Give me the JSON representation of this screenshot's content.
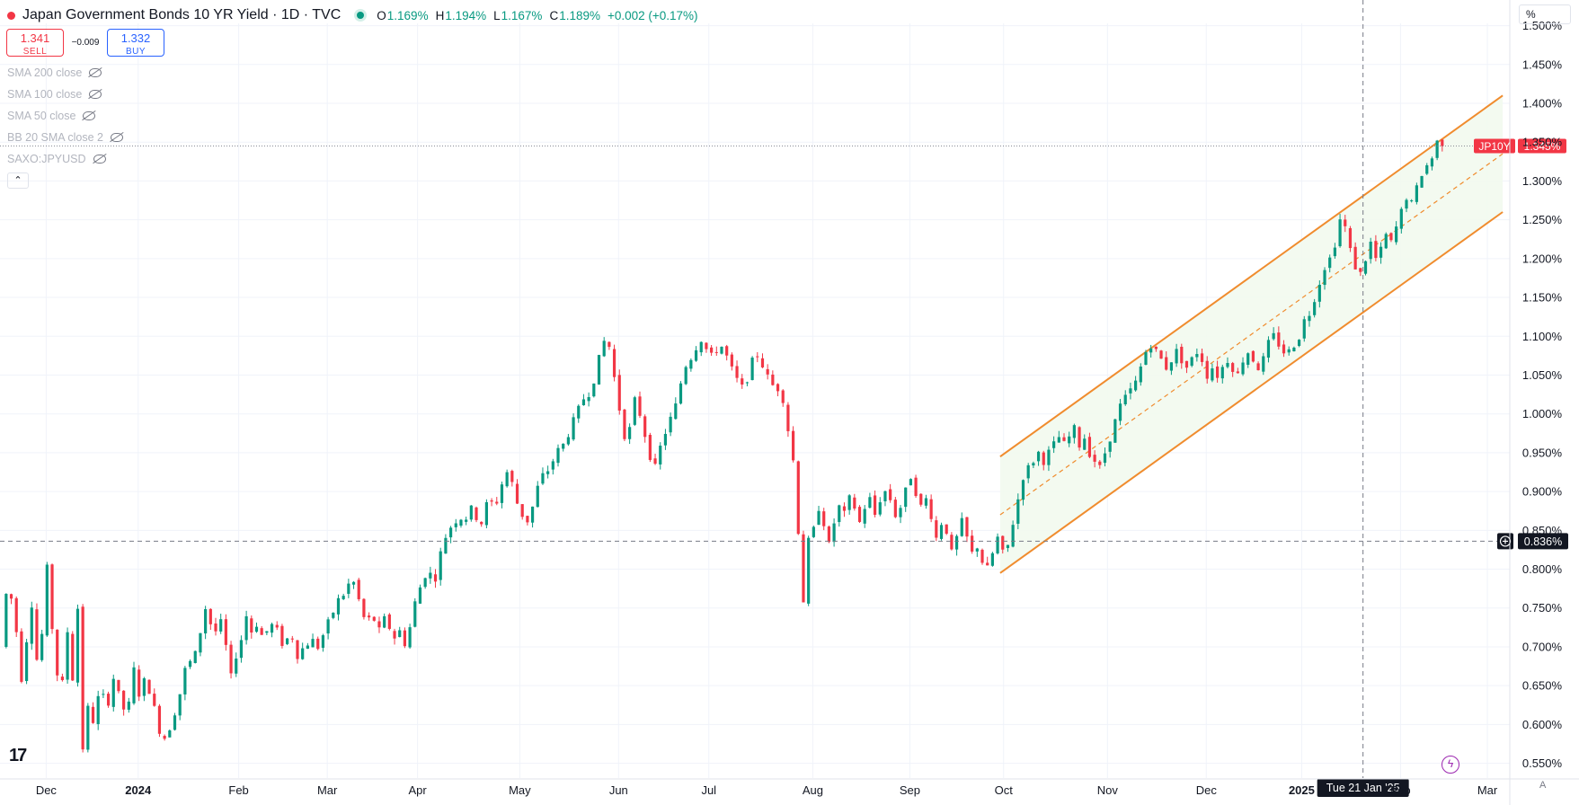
{
  "header": {
    "title": "Japan Government Bonds 10 YR Yield · 1D · TVC",
    "ohlc": [
      {
        "key": "O",
        "value": "1.169%"
      },
      {
        "key": "H",
        "value": "1.194%"
      },
      {
        "key": "L",
        "value": "1.167%"
      },
      {
        "key": "C",
        "value": "1.189%"
      }
    ],
    "change": "+0.002 (+0.17%)"
  },
  "trade": {
    "sell_price": "1.341",
    "sell_label": "SELL",
    "spread": "−0.009",
    "buy_price": "1.332",
    "buy_label": "BUY"
  },
  "indicators": [
    {
      "label": "SMA 200 close"
    },
    {
      "label": "SMA 100 close"
    },
    {
      "label": "SMA 50 close"
    },
    {
      "label": "BB 20 SMA close 2"
    },
    {
      "label": "SAXO:JPYUSD"
    }
  ],
  "axis_unit": "%",
  "colors": {
    "up": "#089981",
    "down": "#f23645",
    "channel": "#f08c2e",
    "channel_fill": "#f2f9ee",
    "text": "#131722",
    "grid": "#f0f3fa"
  },
  "icons": [
    "tradingview-logo-icon",
    "eye-off-icon",
    "chevron-up-icon",
    "lightning-icon",
    "plus-circle-icon"
  ],
  "chart_data": {
    "type": "candlestick",
    "y_axis": {
      "ticks": [
        0.55,
        0.6,
        0.65,
        0.7,
        0.75,
        0.8,
        0.85,
        0.9,
        0.95,
        1.0,
        1.05,
        1.1,
        1.15,
        1.2,
        1.25,
        1.3,
        1.35,
        1.4,
        1.45,
        1.5
      ],
      "tick_labels": [
        "0.550%",
        "0.600%",
        "0.650%",
        "0.700%",
        "0.750%",
        "0.800%",
        "0.850%",
        "0.900%",
        "0.950%",
        "1.000%",
        "1.050%",
        "1.100%",
        "1.150%",
        "1.200%",
        "1.250%",
        "1.300%",
        "1.350%",
        "1.400%",
        "1.450%",
        "1.500%"
      ],
      "range": [
        0.531,
        1.503
      ]
    },
    "x_axis": {
      "labels": [
        {
          "t": 25,
          "text": "Dec"
        },
        {
          "t": 79,
          "text": "2024"
        },
        {
          "t": 138,
          "text": "Feb"
        },
        {
          "t": 190,
          "text": "Mar"
        },
        {
          "t": 243,
          "text": "Apr"
        },
        {
          "t": 303,
          "text": "May"
        },
        {
          "t": 361,
          "text": "Jun"
        },
        {
          "t": 414,
          "text": "Jul"
        },
        {
          "t": 475,
          "text": "Aug"
        },
        {
          "t": 532,
          "text": "Sep"
        },
        {
          "t": 587,
          "text": "Oct"
        },
        {
          "t": 648,
          "text": "Nov"
        },
        {
          "t": 706,
          "text": "Dec"
        },
        {
          "t": 762,
          "text": "2025"
        },
        {
          "t": 820,
          "text": "Feb"
        },
        {
          "t": 871,
          "text": "Mar"
        }
      ],
      "range": [
        0,
        881
      ]
    },
    "price_line": {
      "label": "JP10Y",
      "value_label": "1.345%",
      "value": 1.345
    },
    "crosshair": {
      "price_label": "0.836%",
      "value": 0.836,
      "time_label": "Tue 21 Jan '25",
      "t": 798
    },
    "channel": {
      "start": {
        "t": 585,
        "low": 0.795
      },
      "end": {
        "t": 880,
        "low": 1.26
      },
      "width": 0.15
    },
    "path": [
      [
        0,
        0.7
      ],
      [
        4,
        0.79
      ],
      [
        9,
        0.72
      ],
      [
        13,
        0.64
      ],
      [
        17,
        0.78
      ],
      [
        22,
        0.66
      ],
      [
        27,
        0.8
      ],
      [
        31,
        0.7
      ],
      [
        35,
        0.63
      ],
      [
        39,
        0.72
      ],
      [
        42,
        0.66
      ],
      [
        45,
        0.75
      ],
      [
        48,
        0.57
      ],
      [
        51,
        0.62
      ],
      [
        55,
        0.6
      ],
      [
        58,
        0.65
      ],
      [
        62,
        0.62
      ],
      [
        66,
        0.66
      ],
      [
        70,
        0.63
      ],
      [
        74,
        0.61
      ],
      [
        78,
        0.67
      ],
      [
        81,
        0.64
      ],
      [
        85,
        0.66
      ],
      [
        89,
        0.63
      ],
      [
        92,
        0.6
      ],
      [
        95,
        0.58
      ],
      [
        98,
        0.59
      ],
      [
        101,
        0.61
      ],
      [
        104,
        0.63
      ],
      [
        108,
        0.67
      ],
      [
        111,
        0.68
      ],
      [
        114,
        0.69
      ],
      [
        117,
        0.72
      ],
      [
        120,
        0.75
      ],
      [
        123,
        0.73
      ],
      [
        126,
        0.72
      ],
      [
        129,
        0.73
      ],
      [
        132,
        0.7
      ],
      [
        135,
        0.66
      ],
      [
        138,
        0.69
      ],
      [
        141,
        0.71
      ],
      [
        144,
        0.74
      ],
      [
        147,
        0.72
      ],
      [
        150,
        0.73
      ],
      [
        154,
        0.71
      ],
      [
        158,
        0.73
      ],
      [
        162,
        0.72
      ],
      [
        166,
        0.7
      ],
      [
        170,
        0.72
      ],
      [
        174,
        0.69
      ],
      [
        178,
        0.7
      ],
      [
        182,
        0.71
      ],
      [
        186,
        0.7
      ],
      [
        190,
        0.72
      ],
      [
        194,
        0.74
      ],
      [
        198,
        0.76
      ],
      [
        202,
        0.77
      ],
      [
        206,
        0.79
      ],
      [
        210,
        0.76
      ],
      [
        214,
        0.73
      ],
      [
        218,
        0.74
      ],
      [
        222,
        0.72
      ],
      [
        226,
        0.74
      ],
      [
        230,
        0.71
      ],
      [
        234,
        0.72
      ],
      [
        238,
        0.7
      ],
      [
        242,
        0.75
      ],
      [
        245,
        0.77
      ],
      [
        248,
        0.79
      ],
      [
        251,
        0.8
      ],
      [
        254,
        0.78
      ],
      [
        258,
        0.82
      ],
      [
        262,
        0.85
      ],
      [
        266,
        0.86
      ],
      [
        269,
        0.87
      ],
      [
        272,
        0.86
      ],
      [
        275,
        0.88
      ],
      [
        278,
        0.87
      ],
      [
        282,
        0.86
      ],
      [
        286,
        0.89
      ],
      [
        290,
        0.88
      ],
      [
        294,
        0.91
      ],
      [
        298,
        0.93
      ],
      [
        302,
        0.89
      ],
      [
        306,
        0.87
      ],
      [
        310,
        0.86
      ],
      [
        314,
        0.9
      ],
      [
        318,
        0.92
      ],
      [
        322,
        0.93
      ],
      [
        326,
        0.95
      ],
      [
        330,
        0.96
      ],
      [
        334,
        0.98
      ],
      [
        338,
        1.0
      ],
      [
        342,
        1.02
      ],
      [
        346,
        1.03
      ],
      [
        350,
        1.06
      ],
      [
        353,
        1.09
      ],
      [
        356,
        1.1
      ],
      [
        359,
        1.06
      ],
      [
        362,
        1.02
      ],
      [
        365,
        0.98
      ],
      [
        368,
        0.96
      ],
      [
        371,
        1.02
      ],
      [
        374,
        1.01
      ],
      [
        377,
        0.98
      ],
      [
        380,
        0.96
      ],
      [
        383,
        0.92
      ],
      [
        386,
        0.95
      ],
      [
        389,
        0.97
      ],
      [
        392,
        0.99
      ],
      [
        395,
        1.0
      ],
      [
        398,
        1.03
      ],
      [
        401,
        1.06
      ],
      [
        404,
        1.07
      ],
      [
        407,
        1.08
      ],
      [
        410,
        1.1
      ],
      [
        413,
        1.09
      ],
      [
        416,
        1.07
      ],
      [
        419,
        1.08
      ],
      [
        422,
        1.09
      ],
      [
        425,
        1.08
      ],
      [
        428,
        1.06
      ],
      [
        431,
        1.05
      ],
      [
        434,
        1.03
      ],
      [
        437,
        1.04
      ],
      [
        440,
        1.06
      ],
      [
        443,
        1.08
      ],
      [
        446,
        1.07
      ],
      [
        449,
        1.05
      ],
      [
        452,
        1.04
      ],
      [
        455,
        1.03
      ],
      [
        458,
        1.04
      ],
      [
        460,
        1.0
      ],
      [
        462,
        0.98
      ],
      [
        465,
        0.94
      ],
      [
        467,
        0.88
      ],
      [
        469,
        0.82
      ],
      [
        471,
        0.76
      ],
      [
        473,
        0.81
      ],
      [
        475,
        0.86
      ],
      [
        477,
        0.85
      ],
      [
        480,
        0.88
      ],
      [
        483,
        0.86
      ],
      [
        486,
        0.83
      ],
      [
        489,
        0.86
      ],
      [
        492,
        0.88
      ],
      [
        495,
        0.87
      ],
      [
        498,
        0.89
      ],
      [
        501,
        0.88
      ],
      [
        504,
        0.86
      ],
      [
        507,
        0.88
      ],
      [
        510,
        0.89
      ],
      [
        513,
        0.87
      ],
      [
        516,
        0.89
      ],
      [
        519,
        0.9
      ],
      [
        522,
        0.89
      ],
      [
        525,
        0.87
      ],
      [
        528,
        0.88
      ],
      [
        531,
        0.9
      ],
      [
        534,
        0.92
      ],
      [
        537,
        0.9
      ],
      [
        540,
        0.88
      ],
      [
        543,
        0.89
      ],
      [
        546,
        0.87
      ],
      [
        549,
        0.84
      ],
      [
        552,
        0.86
      ],
      [
        555,
        0.85
      ],
      [
        558,
        0.82
      ],
      [
        561,
        0.84
      ],
      [
        564,
        0.86
      ],
      [
        567,
        0.84
      ],
      [
        570,
        0.82
      ],
      [
        573,
        0.83
      ],
      [
        576,
        0.81
      ],
      [
        579,
        0.8
      ],
      [
        582,
        0.82
      ],
      [
        585,
        0.84
      ],
      [
        588,
        0.82
      ],
      [
        591,
        0.83
      ],
      [
        594,
        0.86
      ],
      [
        597,
        0.89
      ],
      [
        600,
        0.92
      ],
      [
        603,
        0.93
      ],
      [
        606,
        0.94
      ],
      [
        609,
        0.95
      ],
      [
        612,
        0.94
      ],
      [
        615,
        0.95
      ],
      [
        618,
        0.96
      ],
      [
        621,
        0.97
      ],
      [
        624,
        0.96
      ],
      [
        627,
        0.97
      ],
      [
        630,
        0.98
      ],
      [
        633,
        0.96
      ],
      [
        636,
        0.97
      ],
      [
        639,
        0.95
      ],
      [
        642,
        0.94
      ],
      [
        645,
        0.93
      ],
      [
        648,
        0.95
      ],
      [
        651,
        0.97
      ],
      [
        654,
        0.99
      ],
      [
        657,
        1.01
      ],
      [
        660,
        1.02
      ],
      [
        663,
        1.03
      ],
      [
        666,
        1.04
      ],
      [
        669,
        1.06
      ],
      [
        672,
        1.08
      ],
      [
        675,
        1.09
      ],
      [
        678,
        1.08
      ],
      [
        681,
        1.07
      ],
      [
        684,
        1.06
      ],
      [
        687,
        1.07
      ],
      [
        690,
        1.08
      ],
      [
        693,
        1.07
      ],
      [
        696,
        1.06
      ],
      [
        699,
        1.07
      ],
      [
        702,
        1.08
      ],
      [
        705,
        1.07
      ],
      [
        708,
        1.05
      ],
      [
        711,
        1.06
      ],
      [
        714,
        1.05
      ],
      [
        717,
        1.06
      ],
      [
        720,
        1.07
      ],
      [
        723,
        1.06
      ],
      [
        726,
        1.05
      ],
      [
        729,
        1.07
      ],
      [
        732,
        1.08
      ],
      [
        735,
        1.07
      ],
      [
        738,
        1.06
      ],
      [
        741,
        1.07
      ],
      [
        744,
        1.09
      ],
      [
        747,
        1.1
      ],
      [
        750,
        1.09
      ],
      [
        753,
        1.08
      ],
      [
        756,
        1.08
      ],
      [
        759,
        1.09
      ],
      [
        762,
        1.1
      ],
      [
        765,
        1.12
      ],
      [
        768,
        1.13
      ],
      [
        771,
        1.15
      ],
      [
        774,
        1.17
      ],
      [
        777,
        1.19
      ],
      [
        780,
        1.2
      ],
      [
        783,
        1.22
      ],
      [
        786,
        1.25
      ],
      [
        789,
        1.24
      ],
      [
        792,
        1.21
      ],
      [
        795,
        1.19
      ],
      [
        798,
        1.18
      ],
      [
        801,
        1.2
      ],
      [
        804,
        1.22
      ],
      [
        807,
        1.2
      ],
      [
        810,
        1.21
      ],
      [
        813,
        1.23
      ],
      [
        816,
        1.22
      ],
      [
        819,
        1.24
      ],
      [
        822,
        1.26
      ],
      [
        825,
        1.28
      ],
      [
        828,
        1.27
      ],
      [
        831,
        1.29
      ],
      [
        834,
        1.31
      ],
      [
        837,
        1.32
      ],
      [
        840,
        1.33
      ],
      [
        843,
        1.35
      ]
    ]
  }
}
